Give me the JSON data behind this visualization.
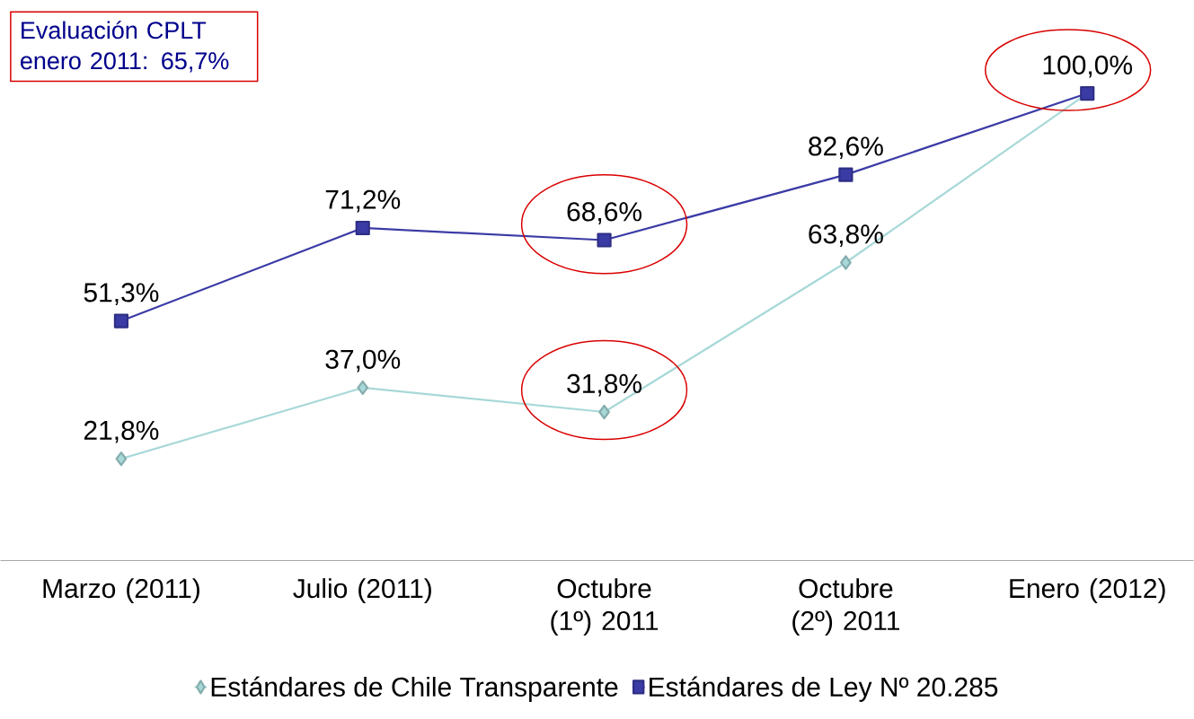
{
  "chart_data": {
    "type": "line",
    "categories": [
      "Marzo (2011)",
      "Julio (2011)",
      "Octubre (1º) 2011",
      "Octubre (2º) 2011",
      "Enero (2012)"
    ],
    "series": [
      {
        "name": "Estándares de Chile Transparente",
        "color": "#a8d8d8",
        "marker": "diamond",
        "values": [
          21.8,
          37.0,
          31.8,
          63.8,
          100.0
        ],
        "value_labels": [
          "21,8%",
          "37,0%",
          "31,8%",
          "63,8%",
          null
        ]
      },
      {
        "name": "Estándares de Ley Nº 20.285",
        "color": "#3b3ba6",
        "marker": "square",
        "values": [
          51.3,
          71.2,
          68.6,
          82.6,
          100.0
        ],
        "value_labels": [
          "51,3%",
          "71,2%",
          "68,6%",
          "82,6%",
          "100,0%"
        ]
      }
    ],
    "annotations": [
      "Evaluación CPLT enero 2011:  65,7%"
    ],
    "legend": "bottom",
    "line_style": "solid"
  }
}
